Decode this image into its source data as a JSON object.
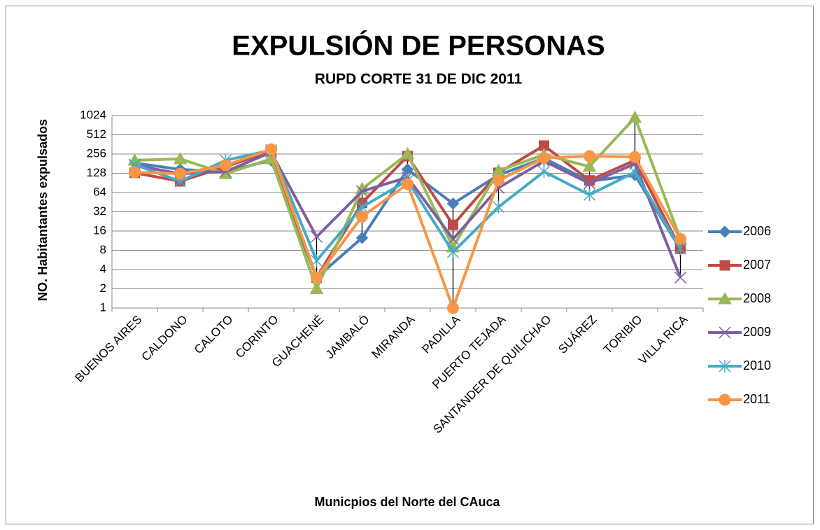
{
  "chart_data": {
    "type": "line",
    "title": "EXPULSIÓN DE PERSONAS",
    "subtitle": "RUPD CORTE 31 DE DIC 2011",
    "y_label": "NO. Habitantantes expulsados",
    "x_label": "Municpios del Norte del CAuca",
    "categories": [
      "BUENOS AIRES",
      "CALDONO",
      "CALOTO",
      "CORINTO",
      "GUACHENÉ",
      "JAMBALÓ",
      "MIRANDA",
      "PADILLA",
      "PUERTO TEJADA",
      "SANTANDER DE QUILICHAO",
      "SUÁREZ",
      "TORIBIO",
      "VILLA RICA"
    ],
    "series": [
      {
        "name": "2006",
        "color": "#4a7ebb",
        "marker": "diamond",
        "values": [
          185,
          147,
          136,
          204,
          3,
          12.5,
          147,
          43,
          120,
          220,
          96,
          120,
          8.3
        ]
      },
      {
        "name": "2007",
        "color": "#be4b48",
        "marker": "square",
        "values": [
          130,
          96,
          163,
          283,
          3,
          44,
          237,
          20,
          130,
          347,
          99,
          204,
          8.5
        ]
      },
      {
        "name": "2008",
        "color": "#98b954",
        "marker": "triangle",
        "values": [
          204,
          215,
          126,
          215,
          2,
          73,
          256,
          9,
          140,
          250,
          163,
          950,
          12
        ]
      },
      {
        "name": "2009",
        "color": "#7d60a0",
        "marker": "x",
        "values": [
          171,
          126,
          136,
          273,
          13,
          67,
          111,
          12,
          76,
          199,
          89,
          180,
          3
        ]
      },
      {
        "name": "2010",
        "color": "#46aac5",
        "marker": "star",
        "values": [
          175,
          96,
          204,
          295,
          5.5,
          38,
          99,
          7.5,
          38,
          136,
          59,
          133,
          8.5
        ]
      },
      {
        "name": "2011",
        "color": "#f79646",
        "marker": "circle",
        "values": [
          133,
          126,
          171,
          303,
          3,
          27,
          87,
          1,
          99,
          222,
          237,
          230,
          12
        ]
      }
    ],
    "ylim": [
      1,
      1024
    ],
    "yticks": [
      1,
      2,
      4,
      8,
      16,
      32,
      64,
      128,
      256,
      512,
      1024
    ],
    "log_base": 2,
    "grid": true,
    "high_low_lines": true,
    "legend": "right"
  }
}
